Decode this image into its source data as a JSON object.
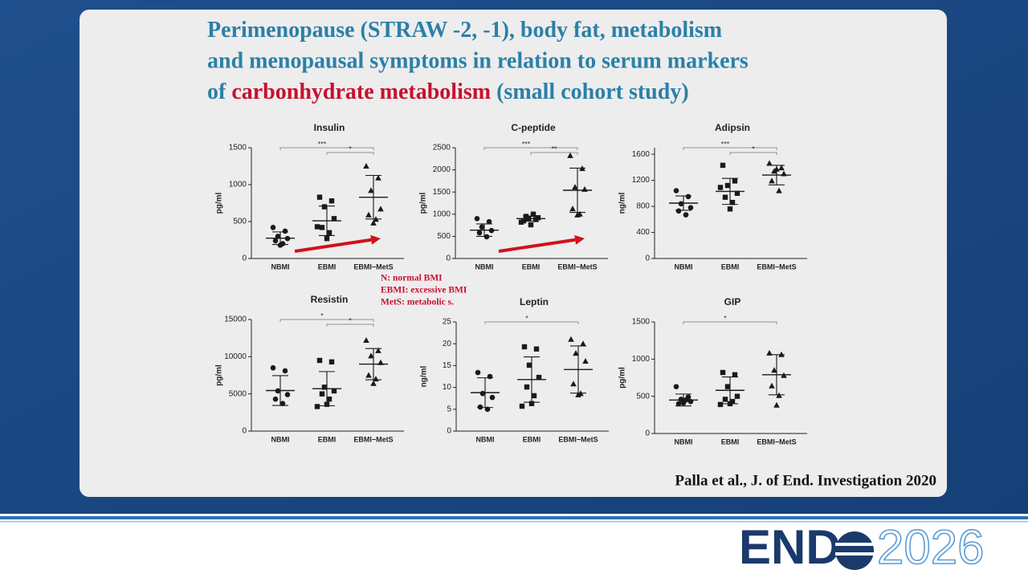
{
  "title_color": "#2b80a8",
  "title_lines": [
    [
      {
        "text": "Perimenopause (STRAW -2, -1), body fat, metabolism"
      }
    ],
    [
      {
        "text": "and menopausal symptoms in relation to serum markers"
      }
    ],
    [
      {
        "text": "of "
      },
      {
        "text": "carbonhydrate metabolism",
        "color": "#c8102e"
      },
      {
        "text": " (small cohort study)"
      }
    ]
  ],
  "notes": [
    "N: normal BMI",
    "EBMI: excessive BMI",
    "MetS: metabolic s."
  ],
  "citation": "Palla et al., J. of End. Investigation 2020",
  "logo": {
    "word": "END",
    "year": "2026"
  },
  "chart_data": [
    {
      "type": "scatter",
      "title": "Insulin",
      "ylabel": "pg/ml",
      "categories": [
        "NBMI",
        "EBMI",
        "EBMI−MetS"
      ],
      "ylim": [
        0,
        1500
      ],
      "yticks": [
        0,
        500,
        1000,
        1500
      ],
      "color": "#1a1a1a",
      "arrow": true,
      "arrow_color": "#d0121b",
      "groups": [
        {
          "marker": "circle",
          "values": [
            420,
            370,
            300,
            270,
            240,
            200,
            180
          ],
          "mean": 275,
          "sd": 85
        },
        {
          "marker": "square",
          "values": [
            830,
            780,
            700,
            540,
            420,
            350,
            270,
            430
          ],
          "mean": 510,
          "sd": 200
        },
        {
          "marker": "triangle",
          "values": [
            1250,
            1090,
            920,
            670,
            590,
            530,
            480
          ],
          "mean": 830,
          "sd": 295
        }
      ],
      "brackets": [
        {
          "from": 0,
          "to": 2,
          "label": "***"
        },
        {
          "from": 1,
          "to": 2,
          "label": "*"
        }
      ]
    },
    {
      "type": "scatter",
      "title": "C-peptide",
      "ylabel": "pg/ml",
      "categories": [
        "NBMI",
        "EBMI",
        "EBMI−MetS"
      ],
      "ylim": [
        0,
        2500
      ],
      "yticks": [
        0,
        500,
        1000,
        1500,
        2000,
        2500
      ],
      "color": "#1a1a1a",
      "arrow": true,
      "arrow_color": "#d0121b",
      "groups": [
        {
          "marker": "circle",
          "values": [
            900,
            830,
            710,
            630,
            580,
            490
          ],
          "mean": 640,
          "sd": 140
        },
        {
          "marker": "square",
          "values": [
            850,
            880,
            900,
            920,
            950,
            1000,
            760,
            820
          ],
          "mean": 900,
          "sd": 60
        },
        {
          "marker": "triangle",
          "values": [
            2320,
            2030,
            1610,
            1560,
            1120,
            1000,
            980
          ],
          "mean": 1540,
          "sd": 500
        }
      ],
      "brackets": [
        {
          "from": 0,
          "to": 2,
          "label": "***"
        },
        {
          "from": 1,
          "to": 2,
          "label": "**"
        }
      ]
    },
    {
      "type": "scatter",
      "title": "Adipsin",
      "ylabel": "ng/ml",
      "categories": [
        "NBMI",
        "EBMI",
        "EBMI−MetS"
      ],
      "ylim": [
        0,
        1700
      ],
      "yticks": [
        0,
        400,
        800,
        1200,
        1600
      ],
      "color": "#1a1a1a",
      "groups": [
        {
          "marker": "circle",
          "values": [
            1040,
            950,
            840,
            780,
            730,
            670
          ],
          "mean": 850,
          "sd": 110
        },
        {
          "marker": "square",
          "values": [
            1430,
            1190,
            1120,
            1000,
            940,
            860,
            760,
            1090
          ],
          "mean": 1030,
          "sd": 200
        },
        {
          "marker": "triangle",
          "values": [
            1460,
            1390,
            1340,
            1300,
            1190,
            1040,
            1370
          ],
          "mean": 1280,
          "sd": 150
        }
      ],
      "brackets": [
        {
          "from": 0,
          "to": 2,
          "label": "***"
        },
        {
          "from": 1,
          "to": 2,
          "label": "*"
        }
      ]
    },
    {
      "type": "scatter",
      "title": "Resistin",
      "ylabel": "pg/ml",
      "categories": [
        "NBMI",
        "EBMI",
        "EBMI−MetS"
      ],
      "ylim": [
        0,
        15000
      ],
      "yticks": [
        0,
        5000,
        10000,
        15000
      ],
      "color": "#1a1a1a",
      "groups": [
        {
          "marker": "circle",
          "values": [
            8500,
            8100,
            5400,
            4900,
            4300,
            3700
          ],
          "mean": 5450,
          "sd": 2000
        },
        {
          "marker": "square",
          "values": [
            9500,
            9300,
            5900,
            5400,
            5000,
            4300,
            3600,
            3300
          ],
          "mean": 5700,
          "sd": 2300
        },
        {
          "marker": "triangle",
          "values": [
            12200,
            10800,
            10100,
            9200,
            7500,
            7000,
            6400
          ],
          "mean": 9000,
          "sd": 2100
        }
      ],
      "brackets": [
        {
          "from": 0,
          "to": 2,
          "label": "*"
        },
        {
          "from": 1,
          "to": 2,
          "label": "*"
        }
      ]
    },
    {
      "type": "scatter",
      "title": "Leptin",
      "ylabel": "ng/ml",
      "categories": [
        "NBMI",
        "EBMI",
        "EBMI−MetS"
      ],
      "ylim": [
        0,
        25
      ],
      "yticks": [
        0,
        5,
        10,
        15,
        20,
        25
      ],
      "color": "#1a1a1a",
      "groups": [
        {
          "marker": "circle",
          "values": [
            13.4,
            12.5,
            8.6,
            7.7,
            5.5,
            5.0
          ],
          "mean": 8.8,
          "sd": 3.4
        },
        {
          "marker": "square",
          "values": [
            19.3,
            18.8,
            15.1,
            12.3,
            10.1,
            8.1,
            6.3,
            5.7
          ],
          "mean": 11.8,
          "sd": 5.2
        },
        {
          "marker": "triangle",
          "values": [
            21.0,
            20.0,
            17.8,
            16.0,
            10.8,
            8.6,
            8.3
          ],
          "mean": 14.1,
          "sd": 5.4
        }
      ],
      "brackets": [
        {
          "from": 0,
          "to": 2,
          "label": "*"
        }
      ]
    },
    {
      "type": "scatter",
      "title": "GIP",
      "ylabel": "pg/ml",
      "categories": [
        "NBMI",
        "EBMI",
        "EBMI−MetS"
      ],
      "ylim": [
        0,
        1500
      ],
      "yticks": [
        0,
        500,
        1000,
        1500
      ],
      "color": "#1a1a1a",
      "groups": [
        {
          "marker": "circle",
          "values": [
            630,
            490,
            460,
            430,
            400,
            450,
            410
          ],
          "mean": 450,
          "sd": 80
        },
        {
          "marker": "square",
          "values": [
            820,
            790,
            630,
            500,
            460,
            430,
            400,
            390
          ],
          "mean": 580,
          "sd": 180
        },
        {
          "marker": "triangle",
          "values": [
            1080,
            1060,
            850,
            780,
            640,
            510,
            380
          ],
          "mean": 790,
          "sd": 270
        }
      ],
      "brackets": [
        {
          "from": 0,
          "to": 2,
          "label": "*"
        }
      ]
    }
  ]
}
